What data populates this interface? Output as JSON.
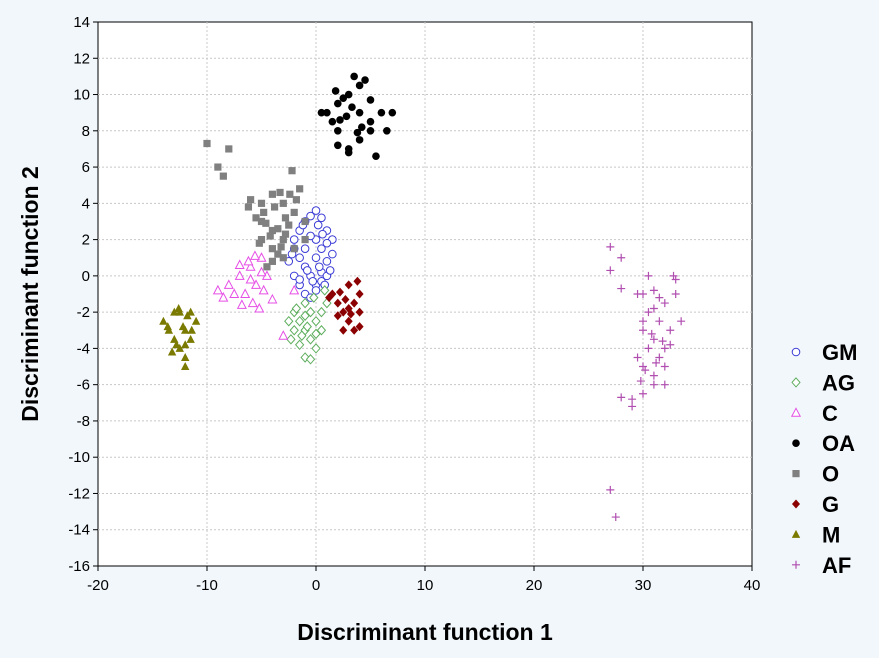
{
  "chart_data": {
    "type": "scatter",
    "xlabel": "Discriminant function 1",
    "ylabel": "Discriminant function 2",
    "xlim": [
      -20,
      40
    ],
    "ylim": [
      -16,
      14
    ],
    "xticks": [
      "-20",
      "-10",
      "0",
      "10",
      "20",
      "30",
      "40"
    ],
    "yticks": [
      "-16",
      "-14",
      "-12",
      "-10",
      "-8",
      "-6",
      "-4",
      "-2",
      "0",
      "2",
      "4",
      "6",
      "8",
      "10",
      "12",
      "14"
    ],
    "grid": true,
    "legend_position": "right",
    "series": [
      {
        "name": "GM",
        "marker": "circle-open",
        "color": "#3b3bd6",
        "points": [
          [
            -1.5,
            2.5
          ],
          [
            -1,
            3
          ],
          [
            -0.5,
            3.3
          ],
          [
            0,
            3.6
          ],
          [
            0.5,
            3.2
          ],
          [
            1,
            2.5
          ],
          [
            1.5,
            2
          ],
          [
            -2,
            1.5
          ],
          [
            -1.5,
            1
          ],
          [
            -1,
            0.5
          ],
          [
            -0.5,
            0
          ],
          [
            0,
            -0.5
          ],
          [
            0.5,
            0.2
          ],
          [
            1,
            0.8
          ],
          [
            1.5,
            1.2
          ],
          [
            -2,
            0
          ],
          [
            -1.5,
            -0.5
          ],
          [
            -1,
            -1
          ],
          [
            -0.5,
            -1.2
          ],
          [
            0,
            -0.8
          ],
          [
            0.5,
            -0.3
          ],
          [
            1,
            0
          ],
          [
            -2.5,
            0.8
          ],
          [
            -2,
            2
          ],
          [
            -1,
            1.5
          ],
          [
            0,
            1
          ],
          [
            0,
            2
          ],
          [
            -0.5,
            2.2
          ],
          [
            0.5,
            1.5
          ],
          [
            1,
            1.8
          ],
          [
            -1.5,
            -0.2
          ],
          [
            -0.8,
            0.3
          ],
          [
            0.3,
            0.5
          ],
          [
            0.8,
            -0.5
          ],
          [
            1.3,
            0.3
          ],
          [
            -2.2,
            1.2
          ],
          [
            -1.2,
            2.8
          ],
          [
            0.2,
            2.8
          ],
          [
            -0.3,
            -0.3
          ],
          [
            0.6,
            2.3
          ]
        ]
      },
      {
        "name": "AG",
        "marker": "diamond-open",
        "color": "#5fae5f",
        "points": [
          [
            -2,
            -2
          ],
          [
            -1.5,
            -2.5
          ],
          [
            -1,
            -3
          ],
          [
            -0.5,
            -3.5
          ],
          [
            0,
            -4
          ],
          [
            -1,
            -4.5
          ],
          [
            -0.5,
            -4.6
          ],
          [
            -1.5,
            -3.8
          ],
          [
            -2,
            -3
          ],
          [
            -2.5,
            -2.5
          ],
          [
            -1,
            -1.5
          ],
          [
            -0.5,
            -2
          ],
          [
            0,
            -2.5
          ],
          [
            0.5,
            -2
          ],
          [
            1,
            -1.5
          ],
          [
            0.5,
            -3
          ],
          [
            0,
            -3.2
          ],
          [
            -1,
            -2.2
          ],
          [
            -1.8,
            -1.8
          ],
          [
            -0.2,
            -1.2
          ],
          [
            0.8,
            -0.8
          ],
          [
            -2.3,
            -3.5
          ],
          [
            -1.3,
            -3.3
          ],
          [
            -0.8,
            -2.8
          ]
        ]
      },
      {
        "name": "C",
        "marker": "triangle-open",
        "color": "#e64fe6",
        "points": [
          [
            -9,
            -0.8
          ],
          [
            -8,
            -0.5
          ],
          [
            -7,
            0
          ],
          [
            -6,
            0.5
          ],
          [
            -5,
            1
          ],
          [
            -6.5,
            -1
          ],
          [
            -5.5,
            -0.5
          ],
          [
            -4.5,
            0
          ],
          [
            -4,
            -1.3
          ],
          [
            -7.5,
            -1
          ],
          [
            -6,
            -0.2
          ],
          [
            -5,
            0.2
          ],
          [
            -8.5,
            -1.2
          ],
          [
            -6.2,
            0.8
          ],
          [
            -5.8,
            -1.5
          ],
          [
            -4.8,
            -0.8
          ],
          [
            -7,
            0.6
          ],
          [
            -5.2,
            -1.8
          ],
          [
            -3,
            -3.3
          ],
          [
            -2,
            -0.8
          ],
          [
            -6.8,
            -1.6
          ],
          [
            -5.6,
            1.1
          ]
        ]
      },
      {
        "name": "OA",
        "marker": "circle",
        "color": "#000000",
        "points": [
          [
            1,
            9
          ],
          [
            2,
            9.5
          ],
          [
            3,
            10
          ],
          [
            4,
            10.5
          ],
          [
            4,
            9
          ],
          [
            5,
            8.5
          ],
          [
            6,
            9
          ],
          [
            7,
            9
          ],
          [
            2,
            8
          ],
          [
            3,
            7
          ],
          [
            4,
            7.5
          ],
          [
            5,
            8
          ],
          [
            1.5,
            8.5
          ],
          [
            2.5,
            9.8
          ],
          [
            3.5,
            11
          ],
          [
            4.5,
            10.8
          ],
          [
            5.5,
            6.6
          ],
          [
            3,
            6.8
          ],
          [
            2,
            7.2
          ],
          [
            6.5,
            8
          ],
          [
            2.8,
            8.8
          ],
          [
            3.3,
            9.3
          ],
          [
            4.2,
            8.2
          ],
          [
            0.5,
            9
          ],
          [
            1.8,
            10.2
          ],
          [
            5,
            9.7
          ],
          [
            3.8,
            7.9
          ],
          [
            2.2,
            8.6
          ]
        ]
      },
      {
        "name": "O",
        "marker": "square",
        "color": "#808080",
        "points": [
          [
            -10,
            7.3
          ],
          [
            -9,
            6
          ],
          [
            -8,
            7
          ],
          [
            -8.5,
            5.5
          ],
          [
            -5,
            4
          ],
          [
            -4,
            4.5
          ],
          [
            -3,
            4
          ],
          [
            -2,
            3.5
          ],
          [
            -1,
            3
          ],
          [
            -5,
            3
          ],
          [
            -4,
            2.5
          ],
          [
            -3,
            2
          ],
          [
            -2,
            1.5
          ],
          [
            -1,
            2
          ],
          [
            -5,
            2
          ],
          [
            -4,
            1.5
          ],
          [
            -3,
            1
          ],
          [
            -4.5,
            0.5
          ],
          [
            -3.5,
            1.2
          ],
          [
            -2.5,
            2.8
          ],
          [
            -4.8,
            3.5
          ],
          [
            -3.8,
            3.8
          ],
          [
            -2.8,
            3.2
          ],
          [
            -1.8,
            4.2
          ],
          [
            -2.2,
            5.8
          ],
          [
            -1.5,
            4.8
          ],
          [
            -6,
            4.2
          ],
          [
            -5.5,
            3.2
          ],
          [
            -4.2,
            2.2
          ],
          [
            -3.2,
            1.6
          ],
          [
            -4,
            0.8
          ],
          [
            -3.5,
            2.6
          ],
          [
            -2.8,
            2.3
          ],
          [
            -5.2,
            1.8
          ],
          [
            -4.6,
            2.9
          ],
          [
            -3.3,
            4.6
          ],
          [
            -6.2,
            3.8
          ],
          [
            -2.4,
            4.5
          ]
        ]
      },
      {
        "name": "G",
        "marker": "diamond",
        "color": "#8b0000",
        "points": [
          [
            1.5,
            -1
          ],
          [
            2,
            -1.5
          ],
          [
            2.5,
            -2
          ],
          [
            3,
            -2.5
          ],
          [
            3.5,
            -1.5
          ],
          [
            4,
            -1
          ],
          [
            4,
            -2
          ],
          [
            3,
            -0.5
          ],
          [
            2.5,
            -3
          ],
          [
            3.5,
            -3
          ],
          [
            4,
            -2.8
          ],
          [
            2,
            -2.2
          ],
          [
            3,
            -1.8
          ],
          [
            3.8,
            -0.3
          ],
          [
            2.2,
            -0.9
          ],
          [
            1.2,
            -1.2
          ],
          [
            3.2,
            -2.1
          ],
          [
            2.7,
            -1.3
          ]
        ]
      },
      {
        "name": "M",
        "marker": "triangle",
        "color": "#7a7a00",
        "points": [
          [
            -14,
            -2.5
          ],
          [
            -13.5,
            -3
          ],
          [
            -13,
            -3.5
          ],
          [
            -12.5,
            -4
          ],
          [
            -12,
            -4.5
          ],
          [
            -12,
            -5
          ],
          [
            -11.5,
            -2
          ],
          [
            -11,
            -2.5
          ],
          [
            -12.5,
            -2
          ],
          [
            -13,
            -2
          ],
          [
            -12,
            -3
          ],
          [
            -11.5,
            -3.5
          ],
          [
            -12.8,
            -3.8
          ],
          [
            -13.2,
            -4.2
          ],
          [
            -12.2,
            -2.8
          ],
          [
            -11.8,
            -2.2
          ],
          [
            -12.6,
            -1.8
          ],
          [
            -11.4,
            -3
          ],
          [
            -13.6,
            -2.8
          ],
          [
            -12,
            -3.8
          ]
        ]
      },
      {
        "name": "AF",
        "marker": "plus",
        "color": "#b04fb0",
        "points": [
          [
            27,
            1.6
          ],
          [
            28,
            1
          ],
          [
            27,
            0.3
          ],
          [
            28,
            -0.7
          ],
          [
            30,
            -1
          ],
          [
            31,
            -0.8
          ],
          [
            32,
            -1.5
          ],
          [
            33,
            -0.2
          ],
          [
            29.5,
            -1
          ],
          [
            30.5,
            -2
          ],
          [
            31.5,
            -2.5
          ],
          [
            32.5,
            -3
          ],
          [
            33.5,
            -2.5
          ],
          [
            30,
            -3
          ],
          [
            31,
            -3.5
          ],
          [
            32,
            -4
          ],
          [
            29.5,
            -4.5
          ],
          [
            30,
            -5
          ],
          [
            31,
            -5.5
          ],
          [
            32,
            -6
          ],
          [
            30,
            -6.5
          ],
          [
            29,
            -6.8
          ],
          [
            28,
            -6.7
          ],
          [
            29,
            -7.2
          ],
          [
            31,
            -6
          ],
          [
            32,
            -5
          ],
          [
            30.5,
            -4
          ],
          [
            31.5,
            -4.5
          ],
          [
            32.5,
            -3.8
          ],
          [
            33,
            -1
          ],
          [
            31,
            -1.8
          ],
          [
            30,
            -2.5
          ],
          [
            30.8,
            -3.2
          ],
          [
            31.8,
            -3.6
          ],
          [
            29.8,
            -5.8
          ],
          [
            31.2,
            -4.8
          ],
          [
            27,
            -11.8
          ],
          [
            27.5,
            -13.3
          ],
          [
            30.5,
            0
          ],
          [
            32.8,
            0
          ],
          [
            31.5,
            -1.2
          ],
          [
            30.2,
            -5.2
          ]
        ]
      }
    ]
  }
}
